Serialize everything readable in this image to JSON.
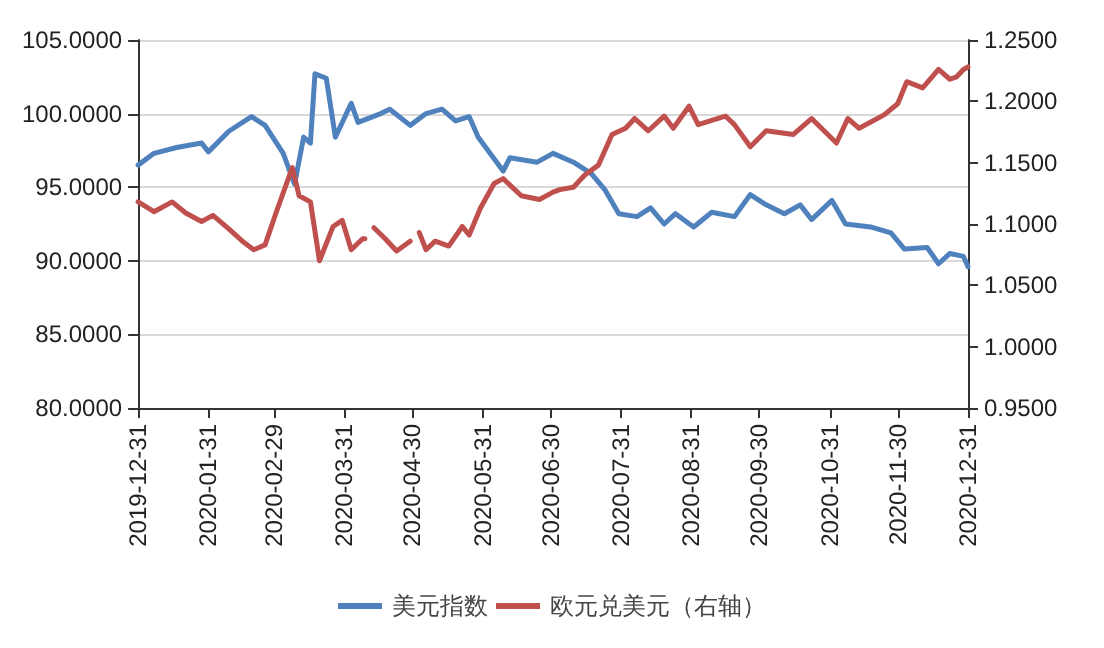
{
  "chart_data": {
    "type": "line",
    "xlim": [
      "2019-12-31",
      "2020-12-31"
    ],
    "xticks": [
      "2019-12-31",
      "2020-01-31",
      "2020-02-29",
      "2020-03-31",
      "2020-04-30",
      "2020-05-31",
      "2020-06-30",
      "2020-07-31",
      "2020-08-31",
      "2020-09-30",
      "2020-10-31",
      "2020-11-30",
      "2020-12-31"
    ],
    "ylim": [
      80,
      105
    ],
    "yticks": [
      {
        "value": 80,
        "label": "80.0000"
      },
      {
        "value": 85,
        "label": "85.0000"
      },
      {
        "value": 90,
        "label": "90.0000"
      },
      {
        "value": 95,
        "label": "95.0000"
      },
      {
        "value": 100,
        "label": "100.0000"
      },
      {
        "value": 105,
        "label": "105.0000"
      }
    ],
    "y2lim": [
      0.95,
      1.25
    ],
    "y2ticks": [
      {
        "value": 0.95,
        "label": "0.9500"
      },
      {
        "value": 1.0,
        "label": "1.0000"
      },
      {
        "value": 1.05,
        "label": "1.0500"
      },
      {
        "value": 1.1,
        "label": "1.1000"
      },
      {
        "value": 1.15,
        "label": "1.1500"
      },
      {
        "value": 1.2,
        "label": "1.2000"
      },
      {
        "value": 1.25,
        "label": "1.2500"
      }
    ],
    "grid": "y",
    "legend": "bottom",
    "series": [
      {
        "name": "美元指数",
        "color": "#4f81bd",
        "x": [
          "2019-12-31",
          "2020-01-07",
          "2020-01-17",
          "2020-01-28",
          "2020-01-31",
          "2020-02-09",
          "2020-02-19",
          "2020-02-25",
          "2020-03-04",
          "2020-03-09",
          "2020-03-13",
          "2020-03-16",
          "2020-03-18",
          "2020-03-23",
          "2020-03-27",
          "2020-04-03",
          "2020-04-06",
          "2020-04-16",
          "2020-04-20",
          "2020-04-29",
          "2020-05-06",
          "2020-05-13",
          "2020-05-19",
          "2020-05-25",
          "2020-05-29",
          "2020-06-09",
          "2020-06-12",
          "2020-06-24",
          "2020-07-01",
          "2020-07-10",
          "2020-07-18",
          "2020-07-24",
          "2020-07-30",
          "2020-08-07",
          "2020-08-13",
          "2020-08-19",
          "2020-08-24",
          "2020-09-01",
          "2020-09-09",
          "2020-09-19",
          "2020-09-26",
          "2020-10-03",
          "2020-10-11",
          "2020-10-18",
          "2020-10-23",
          "2020-11-01",
          "2020-11-07",
          "2020-11-18",
          "2020-11-27",
          "2020-12-03",
          "2020-12-13",
          "2020-12-18",
          "2020-12-23",
          "2020-12-29",
          "2020-12-31"
        ],
        "values": [
          96.5,
          97.3,
          97.7,
          98.0,
          97.4,
          98.8,
          99.8,
          99.2,
          97.3,
          95.2,
          98.4,
          98.0,
          102.7,
          102.4,
          98.4,
          100.7,
          99.4,
          100.0,
          100.3,
          99.2,
          100.0,
          100.3,
          99.5,
          99.8,
          98.4,
          96.1,
          97.0,
          96.7,
          97.3,
          96.7,
          95.9,
          94.8,
          93.2,
          93.0,
          93.6,
          92.5,
          93.2,
          92.3,
          93.3,
          93.0,
          94.5,
          93.8,
          93.2,
          93.8,
          92.8,
          94.1,
          92.5,
          92.3,
          91.9,
          90.8,
          90.9,
          89.8,
          90.5,
          90.3,
          89.6
        ]
      },
      {
        "name": "欧元兑美元（右轴）",
        "color": "#c0504d",
        "axis": "y2",
        "x": [
          "2019-12-31",
          "2020-01-07",
          "2020-01-15",
          "2020-01-21",
          "2020-01-28",
          "2020-02-02",
          "2020-02-09",
          "2020-02-15",
          "2020-02-20",
          "2020-02-25",
          "2020-03-01",
          "2020-03-08",
          "2020-03-11",
          "2020-03-16",
          "2020-03-20",
          "2020-03-26",
          "2020-03-30",
          "2020-04-03",
          "2020-04-08",
          "2020-04-09",
          "2020-04-11",
          "2020-04-13",
          "2020-04-18",
          "2020-04-23",
          "2020-04-29",
          "2020-05-01",
          "2020-05-03",
          "2020-05-06",
          "2020-05-10",
          "2020-05-16",
          "2020-05-22",
          "2020-05-25",
          "2020-05-30",
          "2020-06-05",
          "2020-06-09",
          "2020-06-17",
          "2020-06-25",
          "2020-07-01",
          "2020-07-04",
          "2020-07-10",
          "2020-07-15",
          "2020-07-21",
          "2020-07-27",
          "2020-08-02",
          "2020-08-06",
          "2020-08-12",
          "2020-08-19",
          "2020-08-23",
          "2020-08-30",
          "2020-09-03",
          "2020-09-15",
          "2020-09-19",
          "2020-09-26",
          "2020-10-03",
          "2020-10-15",
          "2020-10-23",
          "2020-11-03",
          "2020-11-08",
          "2020-11-13",
          "2020-11-24",
          "2020-11-30",
          "2020-12-04",
          "2020-12-11",
          "2020-12-18",
          "2020-12-23",
          "2020-12-26",
          "2020-12-29",
          "2020-12-31"
        ],
        "values": [
          1.118,
          1.11,
          1.118,
          1.109,
          1.102,
          1.107,
          1.096,
          1.086,
          1.079,
          1.083,
          1.11,
          1.146,
          1.123,
          1.118,
          1.07,
          1.098,
          1.103,
          1.079,
          1.088,
          1.088,
          null,
          1.097,
          1.088,
          1.078,
          1.086,
          null,
          1.093,
          1.079,
          1.086,
          1.082,
          1.098,
          1.091,
          1.113,
          1.133,
          1.137,
          1.123,
          1.12,
          1.126,
          1.128,
          1.13,
          1.14,
          1.148,
          1.173,
          1.178,
          1.186,
          1.176,
          1.188,
          1.178,
          1.196,
          1.181,
          1.188,
          1.181,
          1.163,
          1.176,
          1.173,
          1.186,
          1.166,
          1.186,
          1.178,
          1.189,
          1.198,
          1.216,
          1.211,
          1.226,
          1.218,
          1.22,
          1.226,
          1.228
        ]
      }
    ]
  }
}
